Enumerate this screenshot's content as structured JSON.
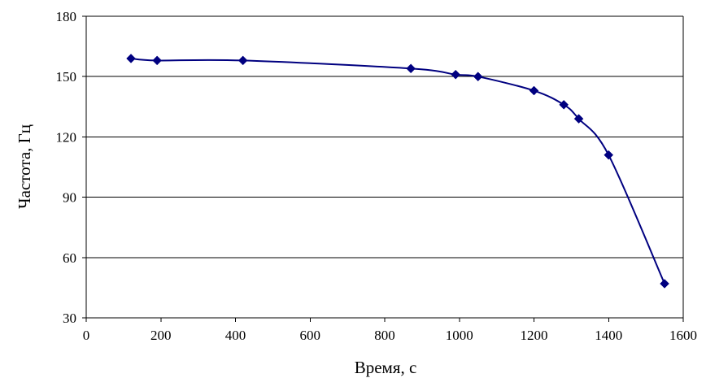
{
  "chart_data": {
    "type": "line",
    "title": "",
    "xlabel": "Время, с",
    "ylabel": "Частота, Гц",
    "xlim": [
      0,
      1600
    ],
    "ylim": [
      30,
      180
    ],
    "xticks": [
      0,
      200,
      400,
      600,
      800,
      1000,
      1200,
      1400,
      1600
    ],
    "yticks": [
      30,
      60,
      90,
      120,
      150,
      180
    ],
    "xtick_labels": [
      "0",
      "200",
      "400",
      "600",
      "800",
      "1000",
      "1200",
      "1400",
      "1600"
    ],
    "ytick_labels": [
      "30",
      "60",
      "90",
      "120",
      "150",
      "180"
    ],
    "grid": "horizontal",
    "legend": "none",
    "smooth": true,
    "series": [
      {
        "color": "#000080",
        "marker": "diamond",
        "x": [
          120,
          190,
          420,
          870,
          990,
          1050,
          1200,
          1280,
          1320,
          1400,
          1550
        ],
        "y": [
          159,
          158,
          158,
          154,
          151,
          150,
          143,
          136,
          129,
          111,
          47
        ]
      }
    ]
  }
}
